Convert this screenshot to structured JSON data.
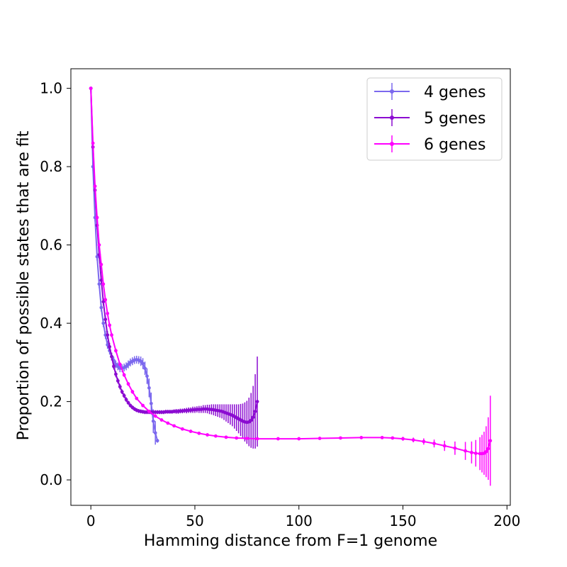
{
  "chart_data": {
    "type": "line",
    "title": "",
    "xlabel": "Hamming distance from F=1 genome",
    "ylabel": "Proportion of possible states that are fit",
    "xlim": [
      -9.6,
      201.6
    ],
    "ylim": [
      -0.065,
      1.05
    ],
    "xticks": [
      "0",
      "50",
      "100",
      "150",
      "200"
    ],
    "yticks": [
      "0.0",
      "0.2",
      "0.4",
      "0.6",
      "0.8",
      "1.0"
    ],
    "grid": false,
    "legend_position": "top-right",
    "error_bars": true,
    "series": [
      {
        "name": "4 genes",
        "color": "#7b68ee",
        "points": [
          [
            0,
            1.0,
            0
          ],
          [
            1,
            0.8,
            0.01
          ],
          [
            2,
            0.67,
            0.01
          ],
          [
            3,
            0.57,
            0.01
          ],
          [
            4,
            0.5,
            0.01
          ],
          [
            5,
            0.44,
            0.01
          ],
          [
            6,
            0.4,
            0.01
          ],
          [
            7,
            0.37,
            0.01
          ],
          [
            8,
            0.345,
            0.01
          ],
          [
            9,
            0.33,
            0.01
          ],
          [
            10,
            0.315,
            0.01
          ],
          [
            11,
            0.305,
            0.01
          ],
          [
            12,
            0.295,
            0.01
          ],
          [
            13,
            0.29,
            0.01
          ],
          [
            14,
            0.285,
            0.01
          ],
          [
            15,
            0.285,
            0.01
          ],
          [
            16,
            0.287,
            0.01
          ],
          [
            17,
            0.29,
            0.01
          ],
          [
            18,
            0.295,
            0.01
          ],
          [
            19,
            0.3,
            0.01
          ],
          [
            20,
            0.303,
            0.01
          ],
          [
            21,
            0.306,
            0.01
          ],
          [
            22,
            0.307,
            0.01
          ],
          [
            23,
            0.306,
            0.01
          ],
          [
            24,
            0.303,
            0.012
          ],
          [
            25,
            0.297,
            0.014
          ],
          [
            26,
            0.285,
            0.017
          ],
          [
            27,
            0.265,
            0.02
          ],
          [
            28,
            0.235,
            0.024
          ],
          [
            29,
            0.195,
            0.028
          ],
          [
            30,
            0.15,
            0.03
          ],
          [
            31,
            0.12,
            0.03
          ],
          [
            32,
            0.1,
            0.005
          ]
        ]
      },
      {
        "name": "5 genes",
        "color": "#8b0bd1",
        "points": [
          [
            0,
            1.0,
            0
          ],
          [
            1,
            0.85,
            0.01
          ],
          [
            2,
            0.74,
            0.01
          ],
          [
            3,
            0.65,
            0.01
          ],
          [
            4,
            0.575,
            0.01
          ],
          [
            5,
            0.51,
            0.01
          ],
          [
            6,
            0.455,
            0.01
          ],
          [
            7,
            0.41,
            0.01
          ],
          [
            8,
            0.37,
            0.01
          ],
          [
            9,
            0.34,
            0.01
          ],
          [
            10,
            0.315,
            0.01
          ],
          [
            11,
            0.29,
            0.008
          ],
          [
            12,
            0.27,
            0.008
          ],
          [
            13,
            0.253,
            0.007
          ],
          [
            14,
            0.238,
            0.007
          ],
          [
            15,
            0.225,
            0.006
          ],
          [
            16,
            0.215,
            0.006
          ],
          [
            17,
            0.205,
            0.006
          ],
          [
            18,
            0.197,
            0.005
          ],
          [
            19,
            0.19,
            0.005
          ],
          [
            20,
            0.185,
            0.005
          ],
          [
            21,
            0.181,
            0.005
          ],
          [
            22,
            0.178,
            0.005
          ],
          [
            23,
            0.176,
            0.005
          ],
          [
            24,
            0.175,
            0.005
          ],
          [
            25,
            0.174,
            0.005
          ],
          [
            26,
            0.173,
            0.005
          ],
          [
            27,
            0.173,
            0.005
          ],
          [
            28,
            0.173,
            0.005
          ],
          [
            29,
            0.173,
            0.005
          ],
          [
            30,
            0.173,
            0.005
          ],
          [
            31,
            0.173,
            0.005
          ],
          [
            32,
            0.173,
            0.005
          ],
          [
            33,
            0.173,
            0.005
          ],
          [
            34,
            0.173,
            0.005
          ],
          [
            35,
            0.173,
            0.005
          ],
          [
            36,
            0.174,
            0.005
          ],
          [
            37,
            0.174,
            0.005
          ],
          [
            38,
            0.174,
            0.005
          ],
          [
            39,
            0.174,
            0.005
          ],
          [
            40,
            0.175,
            0.005
          ],
          [
            41,
            0.175,
            0.006
          ],
          [
            42,
            0.175,
            0.006
          ],
          [
            43,
            0.176,
            0.006
          ],
          [
            44,
            0.176,
            0.006
          ],
          [
            45,
            0.177,
            0.006
          ],
          [
            46,
            0.177,
            0.007
          ],
          [
            47,
            0.178,
            0.007
          ],
          [
            48,
            0.178,
            0.007
          ],
          [
            49,
            0.179,
            0.008
          ],
          [
            50,
            0.179,
            0.008
          ],
          [
            51,
            0.18,
            0.008
          ],
          [
            52,
            0.18,
            0.009
          ],
          [
            53,
            0.18,
            0.009
          ],
          [
            54,
            0.181,
            0.01
          ],
          [
            55,
            0.181,
            0.01
          ],
          [
            56,
            0.181,
            0.011
          ],
          [
            57,
            0.18,
            0.012
          ],
          [
            58,
            0.18,
            0.013
          ],
          [
            59,
            0.179,
            0.014
          ],
          [
            60,
            0.178,
            0.015
          ],
          [
            61,
            0.177,
            0.016
          ],
          [
            62,
            0.176,
            0.017
          ],
          [
            63,
            0.175,
            0.018
          ],
          [
            64,
            0.173,
            0.02
          ],
          [
            65,
            0.171,
            0.022
          ],
          [
            66,
            0.169,
            0.024
          ],
          [
            67,
            0.167,
            0.026
          ],
          [
            68,
            0.165,
            0.028
          ],
          [
            69,
            0.162,
            0.031
          ],
          [
            70,
            0.159,
            0.034
          ],
          [
            71,
            0.156,
            0.037
          ],
          [
            72,
            0.153,
            0.041
          ],
          [
            73,
            0.15,
            0.045
          ],
          [
            74,
            0.148,
            0.05
          ],
          [
            75,
            0.147,
            0.055
          ],
          [
            76,
            0.148,
            0.062
          ],
          [
            77,
            0.152,
            0.07
          ],
          [
            78,
            0.16,
            0.08
          ],
          [
            79,
            0.175,
            0.095
          ],
          [
            80,
            0.2,
            0.115
          ]
        ]
      },
      {
        "name": "6 genes",
        "color": "#ff00ff",
        "points": [
          [
            0,
            1.0,
            0
          ],
          [
            1,
            0.86,
            0.005
          ],
          [
            2,
            0.75,
            0.005
          ],
          [
            3,
            0.67,
            0.005
          ],
          [
            4,
            0.6,
            0.005
          ],
          [
            5,
            0.55,
            0.005
          ],
          [
            6,
            0.5,
            0.005
          ],
          [
            7,
            0.46,
            0.005
          ],
          [
            8,
            0.425,
            0.005
          ],
          [
            9,
            0.395,
            0.005
          ],
          [
            10,
            0.37,
            0.005
          ],
          [
            12,
            0.33,
            0.005
          ],
          [
            14,
            0.295,
            0.005
          ],
          [
            16,
            0.268,
            0.005
          ],
          [
            18,
            0.245,
            0.005
          ],
          [
            20,
            0.225,
            0.005
          ],
          [
            22,
            0.208,
            0.004
          ],
          [
            25,
            0.19,
            0.004
          ],
          [
            28,
            0.175,
            0.004
          ],
          [
            31,
            0.163,
            0.004
          ],
          [
            34,
            0.153,
            0.003
          ],
          [
            37,
            0.145,
            0.003
          ],
          [
            40,
            0.138,
            0.003
          ],
          [
            44,
            0.13,
            0.003
          ],
          [
            48,
            0.124,
            0.003
          ],
          [
            52,
            0.119,
            0.003
          ],
          [
            56,
            0.115,
            0.003
          ],
          [
            60,
            0.112,
            0.003
          ],
          [
            65,
            0.109,
            0.003
          ],
          [
            70,
            0.107,
            0.003
          ],
          [
            75,
            0.106,
            0.003
          ],
          [
            80,
            0.105,
            0.003
          ],
          [
            90,
            0.105,
            0.003
          ],
          [
            100,
            0.105,
            0.003
          ],
          [
            110,
            0.106,
            0.003
          ],
          [
            120,
            0.107,
            0.003
          ],
          [
            130,
            0.108,
            0.003
          ],
          [
            140,
            0.108,
            0.003
          ],
          [
            145,
            0.107,
            0.004
          ],
          [
            150,
            0.105,
            0.005
          ],
          [
            155,
            0.102,
            0.006
          ],
          [
            160,
            0.098,
            0.008
          ],
          [
            165,
            0.093,
            0.01
          ],
          [
            170,
            0.087,
            0.013
          ],
          [
            175,
            0.081,
            0.017
          ],
          [
            180,
            0.074,
            0.023
          ],
          [
            183,
            0.07,
            0.028
          ],
          [
            185,
            0.068,
            0.034
          ],
          [
            187,
            0.067,
            0.042
          ],
          [
            188,
            0.067,
            0.048
          ],
          [
            189,
            0.068,
            0.055
          ],
          [
            190,
            0.072,
            0.065
          ],
          [
            191,
            0.08,
            0.08
          ],
          [
            192,
            0.1,
            0.115
          ]
        ]
      }
    ]
  }
}
